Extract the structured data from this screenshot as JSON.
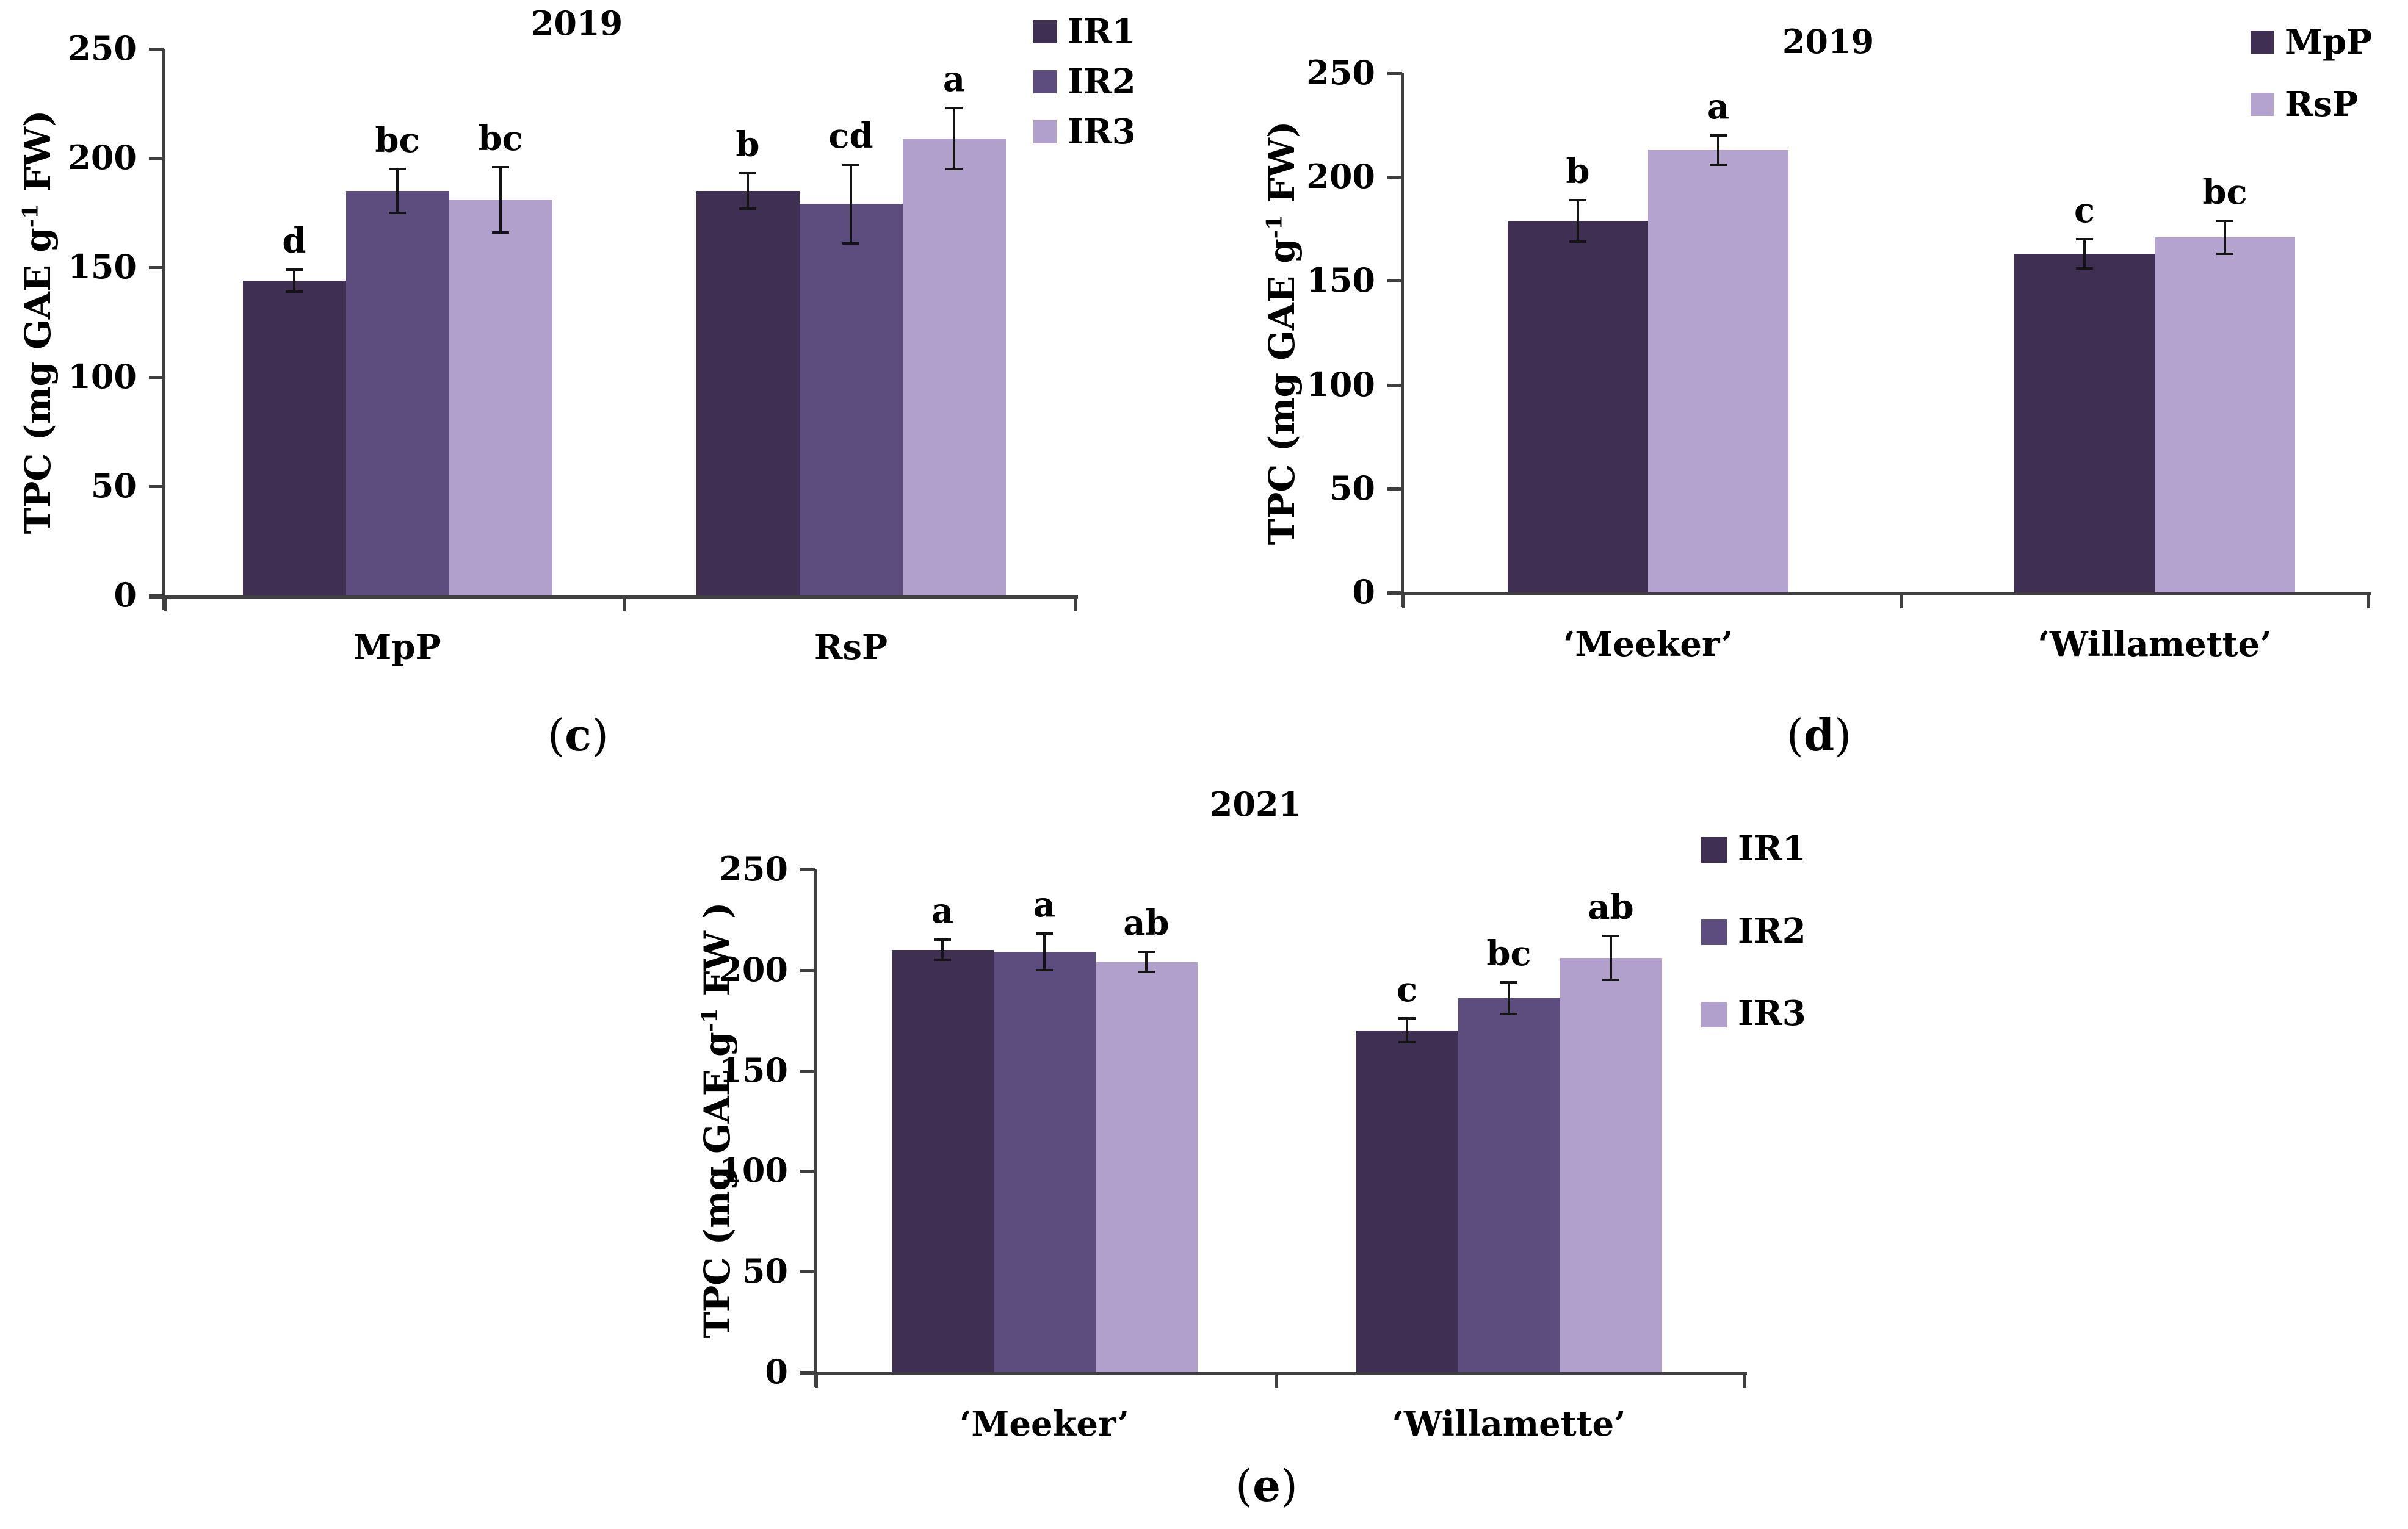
{
  "figure": {
    "background_color": "#ffffff",
    "axis_color": "#3f3f3f",
    "text_color": "#000000",
    "caption_paren_open": "(",
    "caption_paren_close": ")"
  },
  "chart_data": [
    {
      "type": "bar",
      "panel_letter": "c",
      "title": "2019",
      "ylabel": {
        "pre": "TPC (mg GAE g",
        "sup": "-1",
        "post": " FW)"
      },
      "ylim": [
        0,
        250
      ],
      "ytick_step": 50,
      "grid": false,
      "legend_position": "top-right",
      "categories": [
        "MpP",
        "RsP"
      ],
      "series": [
        {
          "name": "IR1",
          "color": "#3f3053",
          "values": [
            144,
            185
          ],
          "errors": [
            5,
            8
          ],
          "letters": [
            "d",
            "b"
          ]
        },
        {
          "name": "IR2",
          "color": "#5d4c7e",
          "values": [
            185,
            179
          ],
          "errors": [
            10,
            18
          ],
          "letters": [
            "bc",
            "cd"
          ]
        },
        {
          "name": "IR3",
          "color": "#b0a0cb",
          "values": [
            181,
            209
          ],
          "errors": [
            15,
            14
          ],
          "letters": [
            "bc",
            "a"
          ]
        }
      ]
    },
    {
      "type": "bar",
      "panel_letter": "d",
      "title": "2019",
      "ylabel": {
        "pre": "TPC (mg GAE g",
        "sup": "-1",
        "post": " FW)"
      },
      "ylim": [
        0,
        250
      ],
      "ytick_step": 50,
      "grid": false,
      "legend_position": "top-right",
      "categories": [
        "‘Meeker’",
        "‘Willamette’"
      ],
      "series": [
        {
          "name": "MpP",
          "color": "#3f3053",
          "values": [
            179,
            163
          ],
          "errors": [
            10,
            7
          ],
          "letters": [
            "b",
            "c"
          ]
        },
        {
          "name": "RsP",
          "color": "#b3a3ce",
          "values": [
            213,
            171
          ],
          "errors": [
            7,
            8
          ],
          "letters": [
            "a",
            "bc"
          ]
        }
      ]
    },
    {
      "type": "bar",
      "panel_letter": "e",
      "title": "2021",
      "ylabel": {
        "pre": "TPC (mg GAE g",
        "sup": "-1",
        "post": " FW )"
      },
      "ylim": [
        0,
        250
      ],
      "ytick_step": 50,
      "grid": false,
      "legend_position": "top-right",
      "categories": [
        "‘Meeker’",
        "‘Willamette’"
      ],
      "series": [
        {
          "name": "IR1",
          "color": "#3f3053",
          "values": [
            210,
            170
          ],
          "errors": [
            5,
            6
          ],
          "letters": [
            "a",
            "c"
          ]
        },
        {
          "name": "IR2",
          "color": "#5d4c7e",
          "values": [
            209,
            186
          ],
          "errors": [
            9,
            8
          ],
          "letters": [
            "a",
            "bc"
          ]
        },
        {
          "name": "IR3",
          "color": "#b0a0cb",
          "values": [
            204,
            206
          ],
          "errors": [
            5,
            11
          ],
          "letters": [
            "ab",
            "ab"
          ]
        }
      ]
    }
  ]
}
